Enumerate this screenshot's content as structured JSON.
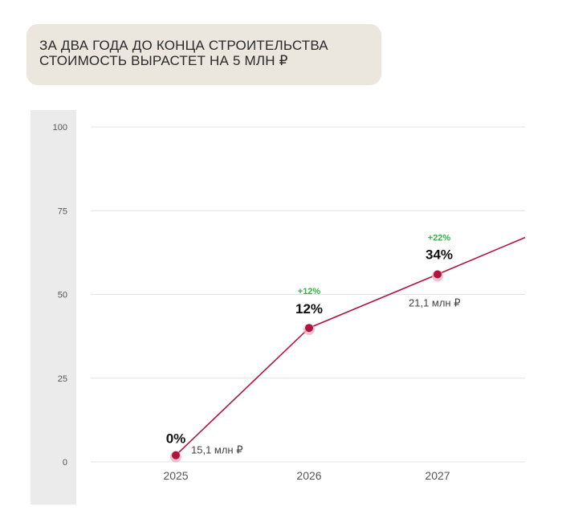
{
  "headline": {
    "line1": "ЗА ДВА ГОДА ДО КОНЦА СТРОИТЕЛЬСТВА",
    "line2": "СТОИМОСТЬ ВЫРАСТЕТ НА 5 МЛН ₽"
  },
  "colors": {
    "line": "#b0133e",
    "point": "#b0133e",
    "point_halo": "#e8b4c1",
    "change": "#2fb449",
    "axis_band": "#ebebeb",
    "grid": "#e3e3e3",
    "headline_bg": "#ebe6de"
  },
  "chart_data": {
    "type": "line",
    "title": "",
    "xlabel": "",
    "ylabel": "",
    "categories": [
      "2025",
      "2026",
      "2027"
    ],
    "x": [
      2025,
      2026,
      2027
    ],
    "values": [
      2,
      40,
      56
    ],
    "line_end_value": 67,
    "ylim": [
      0,
      100
    ],
    "yticks": [
      0,
      25,
      50,
      75,
      100
    ],
    "grid": true,
    "legend": "none",
    "point_labels": [
      {
        "x": "2025",
        "percent": "0%",
        "change": "",
        "price": "15,1 млн ₽"
      },
      {
        "x": "2026",
        "percent": "12%",
        "change": "+12%",
        "price": ""
      },
      {
        "x": "2027",
        "percent": "34%",
        "change": "+22%",
        "price": "21,1 млн ₽"
      }
    ]
  }
}
